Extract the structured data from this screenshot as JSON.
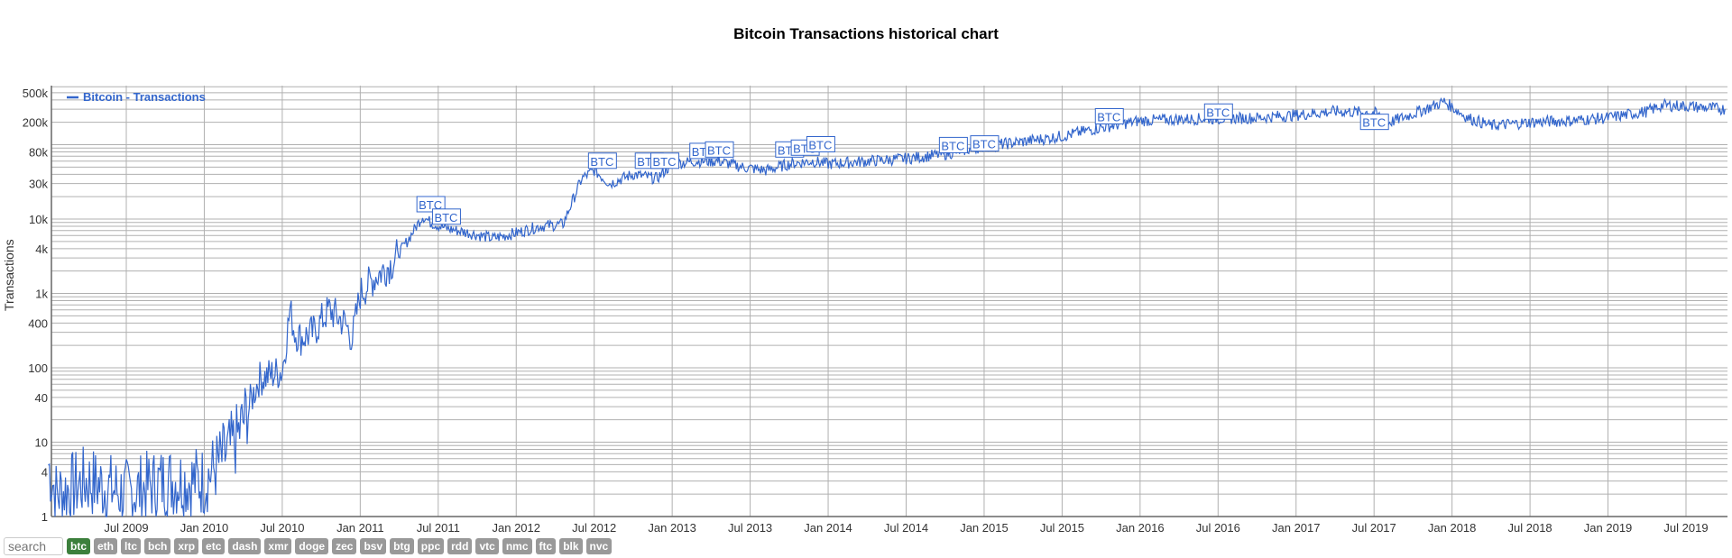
{
  "title": "Bitcoin Transactions historical chart",
  "legend": {
    "label": "Bitcoin - Transactions",
    "color": "#3366cc"
  },
  "search": {
    "placeholder": "search"
  },
  "coins": [
    "btc",
    "eth",
    "ltc",
    "bch",
    "xrp",
    "etc",
    "dash",
    "xmr",
    "doge",
    "zec",
    "bsv",
    "btg",
    "ppc",
    "rdd",
    "vtc",
    "nmc",
    "ftc",
    "blk",
    "nvc"
  ],
  "active_coin": "btc",
  "colors": {
    "line": "#3366cc",
    "grid": "#b0b0b0",
    "active": "#3c7f3c",
    "inactive": "#999999"
  },
  "chart_data": {
    "type": "line",
    "title": "Bitcoin Transactions historical chart",
    "xlabel": "",
    "ylabel": "Transactions",
    "yscale": "log",
    "ylim": [
      1,
      500000
    ],
    "y_ticks": [
      "1",
      "4",
      "10",
      "40",
      "100",
      "400",
      "1k",
      "4k",
      "10k",
      "30k",
      "80k",
      "200k",
      "500k"
    ],
    "x_ticks": [
      "Jul 2009",
      "Jan 2010",
      "Jul 2010",
      "Jan 2011",
      "Jul 2011",
      "Jan 2012",
      "Jul 2012",
      "Jan 2013",
      "Jul 2013",
      "Jan 2014",
      "Jul 2014",
      "Jan 2015",
      "Jul 2015",
      "Jan 2016",
      "Jul 2016",
      "Jan 2017",
      "Jul 2017",
      "Jan 2018",
      "Jul 2018",
      "Jan 2019",
      "Jul 2019"
    ],
    "legend": [
      "Bitcoin - Transactions"
    ],
    "legend_position": "top-left",
    "grid": true,
    "series": [
      {
        "name": "Bitcoin - Transactions",
        "x": [
          2009.0,
          2009.05,
          2009.25,
          2009.5,
          2009.75,
          2010.0,
          2010.2,
          2010.35,
          2010.42,
          2010.5,
          2010.55,
          2010.58,
          2010.62,
          2010.7,
          2010.8,
          2010.9,
          2010.95,
          2011.0,
          2011.1,
          2011.2,
          2011.3,
          2011.4,
          2011.45,
          2011.55,
          2011.7,
          2011.85,
          2012.0,
          2012.15,
          2012.3,
          2012.42,
          2012.5,
          2012.6,
          2012.75,
          2012.9,
          2013.0,
          2013.15,
          2013.3,
          2013.45,
          2013.6,
          2013.75,
          2013.9,
          2014.0,
          2014.25,
          2014.5,
          2014.75,
          2015.0,
          2015.25,
          2015.5,
          2015.75,
          2016.0,
          2016.25,
          2016.5,
          2016.75,
          2017.0,
          2017.25,
          2017.5,
          2017.6,
          2017.75,
          2017.95,
          2018.1,
          2018.25,
          2018.5,
          2018.75,
          2019.0,
          2019.25,
          2019.35,
          2019.5,
          2019.75
        ],
        "values": [
          5,
          2,
          3,
          2,
          3,
          3,
          10,
          70,
          80,
          90,
          600,
          300,
          250,
          300,
          600,
          400,
          250,
          1000,
          1700,
          2500,
          5000,
          11000,
          9000,
          7500,
          6500,
          5500,
          6500,
          8000,
          8500,
          35000,
          45000,
          30000,
          40000,
          35000,
          55000,
          60000,
          60000,
          50000,
          45000,
          55000,
          60000,
          55000,
          60000,
          65000,
          75000,
          95000,
          110000,
          130000,
          170000,
          210000,
          220000,
          225000,
          230000,
          250000,
          280000,
          270000,
          200000,
          260000,
          380000,
          230000,
          180000,
          200000,
          210000,
          230000,
          280000,
          340000,
          330000,
          300000
        ]
      }
    ],
    "annotations": [
      "BTC",
      "BTC",
      "BTC",
      "BTC",
      "BTC",
      "BTC",
      "BTC",
      "BTC",
      "BTC",
      "BTC",
      "BTC",
      "BTC",
      "BTC",
      "BTC",
      "BTC",
      "BTC"
    ]
  }
}
